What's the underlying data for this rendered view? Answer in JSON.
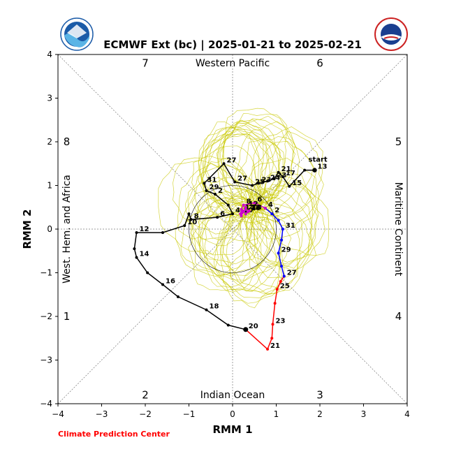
{
  "chart_data": {
    "type": "line",
    "title": "ECMWF Ext (bc) | 2025-01-21 to 2025-02-21",
    "xlabel": "RMM 1",
    "ylabel": "RMM 2",
    "xlim": [
      -4,
      4
    ],
    "ylim": [
      -4,
      4
    ],
    "xticks": [
      "−4",
      "−3",
      "−2",
      "−1",
      "0",
      "1",
      "2",
      "3",
      "4"
    ],
    "yticks": [
      "−4",
      "−3",
      "−2",
      "−1",
      "0",
      "1",
      "2",
      "3",
      "4"
    ],
    "regions": {
      "top": "Western Pacific",
      "bottom": "Indian Ocean",
      "left": "West. Hem. and Africa",
      "right": "Maritime Continent"
    },
    "phases": [
      "1",
      "2",
      "3",
      "4",
      "5",
      "6",
      "7",
      "8"
    ],
    "start_label": "start",
    "series": [
      {
        "color": "#000000",
        "points": [
          [
            1.88,
            1.35,
            "13"
          ],
          [
            1.65,
            1.35,
            ""
          ],
          [
            1.3,
            0.98,
            "15"
          ],
          [
            1.15,
            1.2,
            "17"
          ],
          [
            1.05,
            1.3,
            "21"
          ],
          [
            0.95,
            1.15,
            "23"
          ],
          [
            0.8,
            1.1,
            "24"
          ],
          [
            0.6,
            1.05,
            "23"
          ],
          [
            0.45,
            1.0,
            "25"
          ],
          [
            0.05,
            1.08,
            "27"
          ],
          [
            -0.2,
            1.5,
            "27"
          ],
          [
            -0.65,
            1.05,
            "31"
          ],
          [
            -0.6,
            0.88,
            "29"
          ],
          [
            -0.4,
            0.8,
            "2"
          ],
          [
            -0.1,
            0.55,
            ""
          ],
          [
            0.0,
            0.35,
            "4"
          ],
          [
            -0.35,
            0.27,
            "6"
          ],
          [
            -0.95,
            0.22,
            "8"
          ],
          [
            -1.0,
            0.35,
            ""
          ],
          [
            -1.1,
            0.08,
            "10"
          ],
          [
            -1.6,
            -0.08,
            ""
          ],
          [
            -2.2,
            -0.08,
            "12"
          ],
          [
            -2.25,
            -0.45,
            ""
          ],
          [
            -2.2,
            -0.65,
            "14"
          ],
          [
            -1.95,
            -1.0,
            ""
          ],
          [
            -1.6,
            -1.27,
            "16"
          ],
          [
            -1.25,
            -1.55,
            ""
          ],
          [
            -0.6,
            -1.85,
            "18"
          ],
          [
            -0.1,
            -2.2,
            ""
          ],
          [
            0.3,
            -2.3,
            "20"
          ]
        ]
      },
      {
        "color": "#ff0000",
        "points": [
          [
            0.3,
            -2.3,
            ""
          ],
          [
            0.8,
            -2.75,
            "21"
          ],
          [
            0.9,
            -2.5,
            ""
          ],
          [
            0.92,
            -2.18,
            "23"
          ],
          [
            0.97,
            -1.7,
            ""
          ],
          [
            1.02,
            -1.38,
            "25"
          ],
          [
            1.1,
            -1.2,
            ""
          ],
          [
            1.18,
            -1.08,
            "27"
          ]
        ]
      },
      {
        "color": "#0000ff",
        "points": [
          [
            1.18,
            -1.08,
            ""
          ],
          [
            1.12,
            -0.85,
            ""
          ],
          [
            1.05,
            -0.55,
            "29"
          ],
          [
            1.12,
            -0.25,
            ""
          ],
          [
            1.15,
            0.0,
            "31"
          ],
          [
            1.05,
            0.2,
            ""
          ],
          [
            0.9,
            0.35,
            "2"
          ],
          [
            0.75,
            0.48,
            ""
          ]
        ]
      },
      {
        "color": "#cc00cc",
        "points": [
          [
            0.75,
            0.48,
            "4"
          ],
          [
            0.5,
            0.6,
            "6"
          ],
          [
            0.25,
            0.55,
            "8"
          ],
          [
            0.2,
            0.45,
            ""
          ],
          [
            0.18,
            0.35,
            "10"
          ],
          [
            0.25,
            0.4,
            ""
          ],
          [
            0.3,
            0.5,
            "12"
          ],
          [
            0.2,
            0.3,
            ""
          ],
          [
            0.22,
            0.42,
            "14"
          ],
          [
            0.3,
            0.45,
            ""
          ],
          [
            0.35,
            0.4,
            "16"
          ],
          [
            0.3,
            0.35,
            ""
          ],
          [
            0.38,
            0.42,
            "18"
          ]
        ]
      }
    ]
  }
}
